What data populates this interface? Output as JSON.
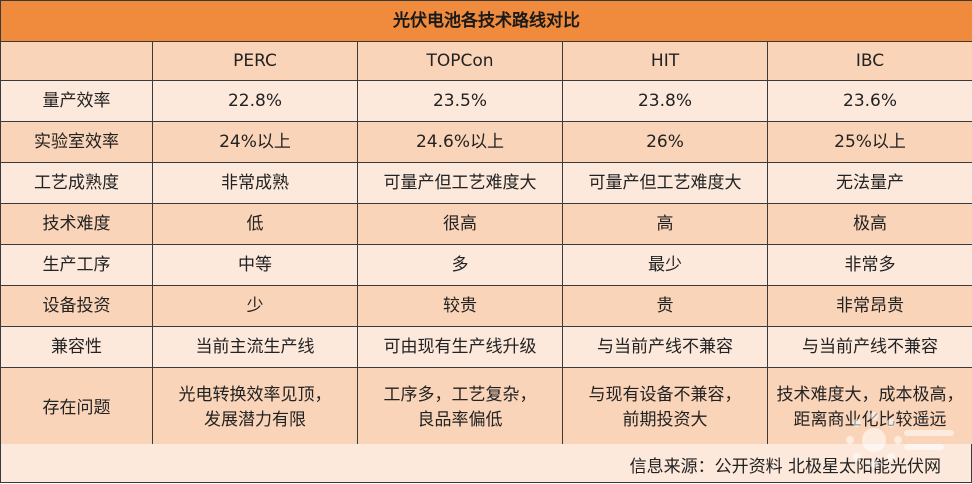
{
  "title": "光伏电池各技术路线对比",
  "columns": [
    "",
    "PERC",
    "TOPCon",
    "HIT",
    "IBC"
  ],
  "rows": [
    {
      "label": "量产效率",
      "cells": [
        "22.8%",
        "23.5%",
        "23.8%",
        "23.6%"
      ]
    },
    {
      "label": "实验室效率",
      "cells": [
        "24%以上",
        "24.6%以上",
        "26%",
        "25%以上"
      ]
    },
    {
      "label": "工艺成熟度",
      "cells": [
        "非常成熟",
        "可量产但工艺难度大",
        "可量产但工艺难度大",
        "无法量产"
      ]
    },
    {
      "label": "技术难度",
      "cells": [
        "低",
        "很高",
        "高",
        "极高"
      ]
    },
    {
      "label": "生产工序",
      "cells": [
        "中等",
        "多",
        "最少",
        "非常多"
      ]
    },
    {
      "label": "设备投资",
      "cells": [
        "少",
        "较贵",
        "贵",
        "非常昂贵"
      ]
    },
    {
      "label": "兼容性",
      "cells": [
        "当前主流生产线",
        "可由现有生产线升级",
        "与当前产线不兼容",
        "与当前产线不兼容"
      ]
    },
    {
      "label": "存在问题",
      "cells": [
        [
          "光电转换效率见顶，",
          "发展潜力有限"
        ],
        [
          "工序多，工艺复杂，",
          "良品率偏低"
        ],
        [
          "与现有设备不兼容，",
          "前期投资大"
        ],
        [
          "技术难度大，成本极高，",
          "距离商业化比较遥远"
        ]
      ]
    }
  ],
  "source": "信息来源：公开资料  北极星太阳能光伏网",
  "colors": {
    "title_bg": "#f08a3c",
    "row_light": "#fce9dc",
    "row_dark": "#f9d4b8",
    "border": "#3a3a3a"
  },
  "watermark_icon": "sun-logo-icon"
}
